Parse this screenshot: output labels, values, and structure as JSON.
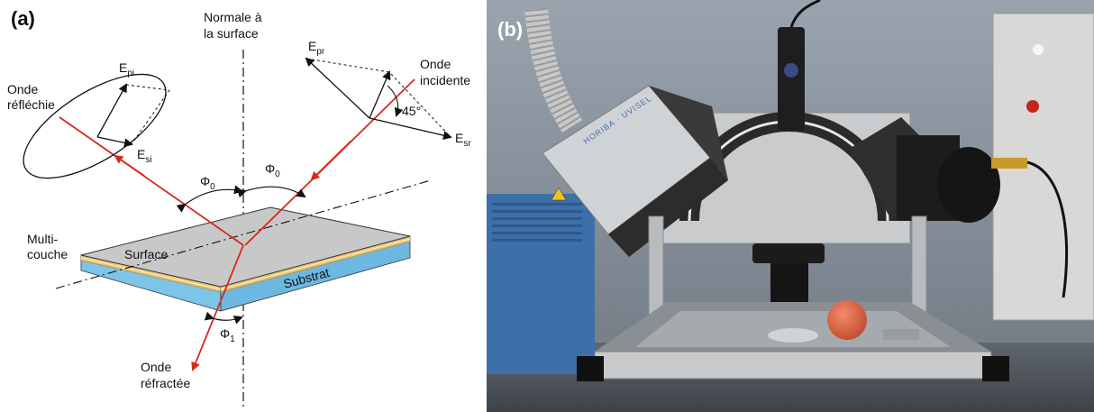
{
  "panel_a": {
    "label": "(a)",
    "normal_label_1": "Normale à",
    "normal_label_2": "la surface",
    "reflected_label_1": "Onde",
    "reflected_label_2": "réfléchie",
    "incident_label_1": "Onde",
    "incident_label_2": "incidente",
    "refracted_label_1": "Onde",
    "refracted_label_2": "réfractée",
    "multilayer_label_1": "Multi-",
    "multilayer_label_2": "couche",
    "surface_label": "Surface",
    "substrate_label": "Substrat",
    "angle_incidence": "Φ",
    "angle_incidence_sub": "0",
    "angle_refraction": "Φ",
    "angle_refraction_sub": "1",
    "angle_45": "45°",
    "field_E": "E",
    "sub_pi": "pi",
    "sub_si": "si",
    "sub_pr": "pr",
    "sub_sr": "sr",
    "colors": {
      "ray": "#d42a1f",
      "substrate": "#7cc4e8",
      "layer_gold": "#e8c37a",
      "surface_top": "#c8c8c8"
    }
  },
  "panel_b": {
    "label": "(b)",
    "brand_text": "HORIBA · UVISEL"
  }
}
